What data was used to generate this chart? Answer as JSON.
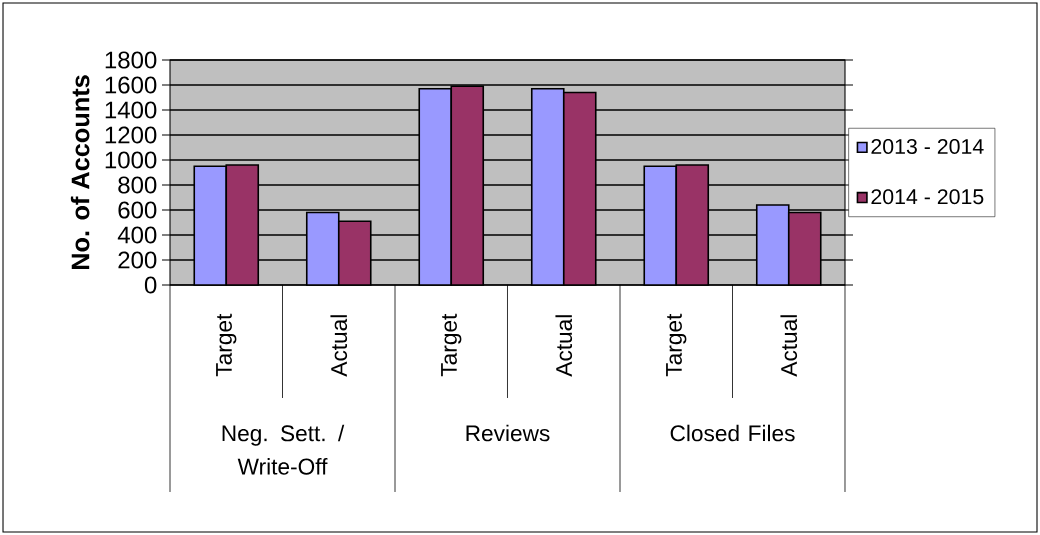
{
  "chart_data": {
    "type": "bar",
    "ylabel": "No. of Accounts",
    "categories": [
      "Target",
      "Actual",
      "Target",
      "Actual",
      "Target",
      "Actual"
    ],
    "series": [
      {
        "name": "2013 - 2014",
        "color": "#9999ff",
        "values": [
          950,
          580,
          1570,
          1570,
          950,
          640
        ]
      },
      {
        "name": "2014 - 2015",
        "color": "#993366",
        "values": [
          960,
          510,
          1590,
          1540,
          960,
          580
        ]
      }
    ],
    "annotations": [
      "Neg. Sett. / Write-Off",
      "Reviews",
      "Closed Files"
    ],
    "ylim": [
      0,
      1800
    ],
    "yticks": [
      0,
      200,
      400,
      600,
      800,
      1000,
      1200,
      1400,
      1600,
      1800
    ],
    "grid": "y",
    "legend": "right"
  }
}
